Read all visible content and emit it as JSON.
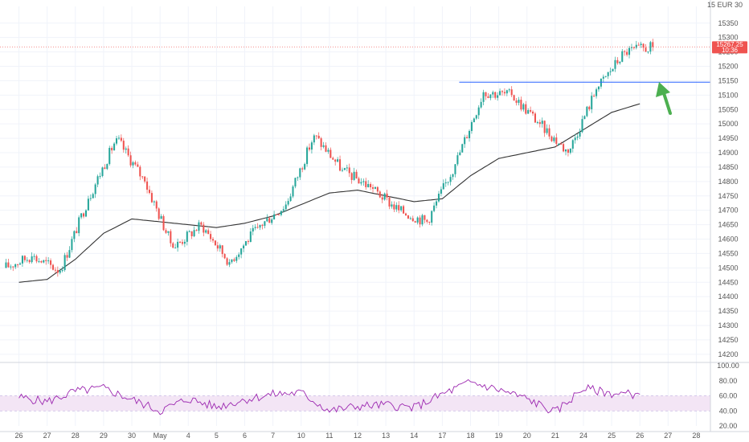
{
  "header": {
    "unit_label": "15 EUR 30"
  },
  "price_axis": {
    "ticks": [
      15350,
      15300,
      15250,
      15200,
      15150,
      15100,
      15050,
      15000,
      14950,
      14900,
      14850,
      14800,
      14750,
      14700,
      14650,
      14600,
      14550,
      14500,
      14450,
      14400,
      14350,
      14300,
      14250,
      14200
    ],
    "last_price": "15267.25",
    "last_price_countdown": "10:36",
    "last_price_color": "#ef5350"
  },
  "rsi_axis": {
    "ticks": [
      100.0,
      80.0,
      60.0,
      40.0,
      20.0
    ]
  },
  "time_axis": {
    "labels": [
      "26",
      "27",
      "28",
      "29",
      "30",
      "May",
      "4",
      "5",
      "6",
      "7",
      "10",
      "11",
      "12",
      "13",
      "14",
      "17",
      "18",
      "19",
      "20",
      "21",
      "24",
      "25",
      "26",
      "27",
      "28"
    ]
  },
  "colors": {
    "up": "#26a69a",
    "down": "#ef5350",
    "ma": "#333333",
    "rsi": "#9c27b0",
    "rsi_band": "#f3e5f5",
    "hline": "#2962ff",
    "arrow": "#4caf50"
  },
  "chart_data": {
    "type": "candlestick",
    "x": [
      "26",
      "27",
      "28",
      "29",
      "30",
      "May",
      "4",
      "5",
      "6",
      "7",
      "10",
      "11",
      "12",
      "13",
      "14",
      "17",
      "18",
      "19",
      "20",
      "21",
      "24",
      "25",
      "26"
    ],
    "close": [
      14540,
      14490,
      14740,
      14950,
      14800,
      14570,
      14650,
      14520,
      14640,
      14720,
      14960,
      14840,
      14780,
      14700,
      14660,
      14860,
      15110,
      15100,
      15000,
      14900,
      15120,
      15250,
      15267
    ],
    "moving_average": [
      14450,
      14460,
      14530,
      14620,
      14670,
      14660,
      14650,
      14640,
      14655,
      14680,
      14720,
      14760,
      14770,
      14750,
      14730,
      14740,
      14820,
      14880,
      14900,
      14920,
      14980,
      15040,
      15070
    ],
    "horizontal_level": 15145,
    "ylim": [
      14180,
      15380
    ],
    "rsi": {
      "values": [
        58,
        52,
        66,
        70,
        55,
        40,
        56,
        45,
        55,
        62,
        64,
        40,
        46,
        48,
        44,
        62,
        78,
        68,
        56,
        38,
        70,
        63,
        62
      ],
      "band": [
        40,
        60
      ],
      "ylim": [
        20,
        100
      ]
    },
    "annotation": "upward arrow",
    "grid": true
  }
}
